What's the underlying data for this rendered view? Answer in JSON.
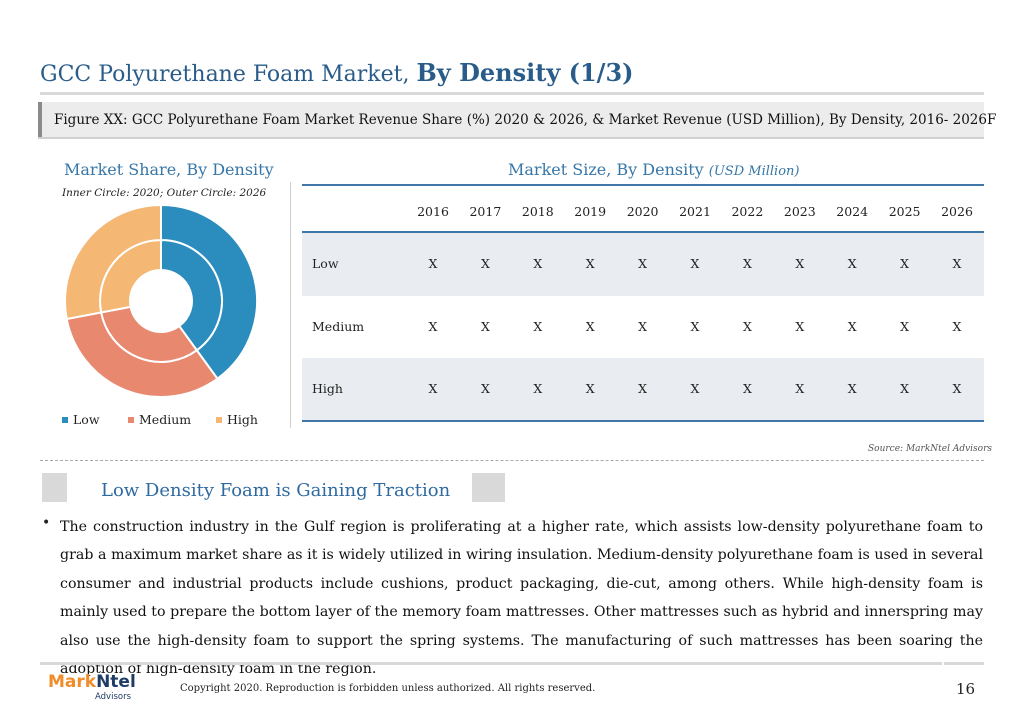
{
  "header": {
    "title_plain": "GCC Polyurethane Foam Market, ",
    "title_bold": "By Density (1/3)"
  },
  "figure_caption": "Figure XX: GCC Polyurethane Foam Market Revenue Share (%) 2020 & 2026, & Market Revenue (USD Million), By Density, 2016- 2026F",
  "market_share": {
    "heading": "Market Share, By Density",
    "subtitle": "Inner Circle: 2020; Outer Circle: 2026"
  },
  "market_size": {
    "heading": "Market Size, By Density ",
    "unit": "(USD Million)"
  },
  "colors": {
    "low": "#2b8cbe",
    "medium": "#e8896f",
    "high": "#f5b774",
    "title_blue": "#2a5c8a"
  },
  "chart_data": [
    {
      "type": "pie",
      "variant": "double-donut",
      "title": "Market Share, By Density",
      "subtitle": "Inner Circle: 2020; Outer Circle: 2026",
      "legend": [
        "Low",
        "Medium",
        "High"
      ],
      "legend_position": "bottom",
      "series": [
        {
          "name": "2020",
          "ring": "inner",
          "values": [
            40,
            32,
            28
          ]
        },
        {
          "name": "2026",
          "ring": "outer",
          "values": [
            40,
            32,
            28
          ]
        }
      ]
    },
    {
      "type": "table",
      "title": "Market Size, By Density (USD Million)",
      "columns": [
        "2016",
        "2017",
        "2018",
        "2019",
        "2020",
        "2021",
        "2022",
        "2023",
        "2024",
        "2025",
        "2026"
      ],
      "rows": [
        {
          "label": "Low",
          "values": [
            "X",
            "X",
            "X",
            "X",
            "X",
            "X",
            "X",
            "X",
            "X",
            "X",
            "X"
          ]
        },
        {
          "label": "Medium",
          "values": [
            "X",
            "X",
            "X",
            "X",
            "X",
            "X",
            "X",
            "X",
            "X",
            "X",
            "X"
          ]
        },
        {
          "label": "High",
          "values": [
            "X",
            "X",
            "X",
            "X",
            "X",
            "X",
            "X",
            "X",
            "X",
            "X",
            "X"
          ]
        }
      ]
    }
  ],
  "source": "Source: MarkNtel Advisors",
  "section": {
    "heading": "Low Density Foam is Gaining Traction",
    "body": "The construction industry in the Gulf region is proliferating at a higher rate, which assists low-density polyurethane foam to grab a maximum market share as it is widely utilized in wiring insulation. Medium-density polyurethane foam is used in several consumer and industrial products include cushions, product packaging, die-cut, among others. While high-density foam is mainly used to prepare the bottom layer of the memory foam mattresses. Other mattresses such as hybrid and innerspring may also use the high-density foam to support the spring systems. The manufacturing of such mattresses has been soaring the adoption of high-density foam in the region."
  },
  "footer": {
    "logo_mark": "Mark",
    "logo_ntel": "Ntel",
    "logo_sub": "Advisors",
    "copyright": "Copyright 2020. Reproduction is forbidden unless authorized. All rights reserved.",
    "page_number": "16"
  }
}
